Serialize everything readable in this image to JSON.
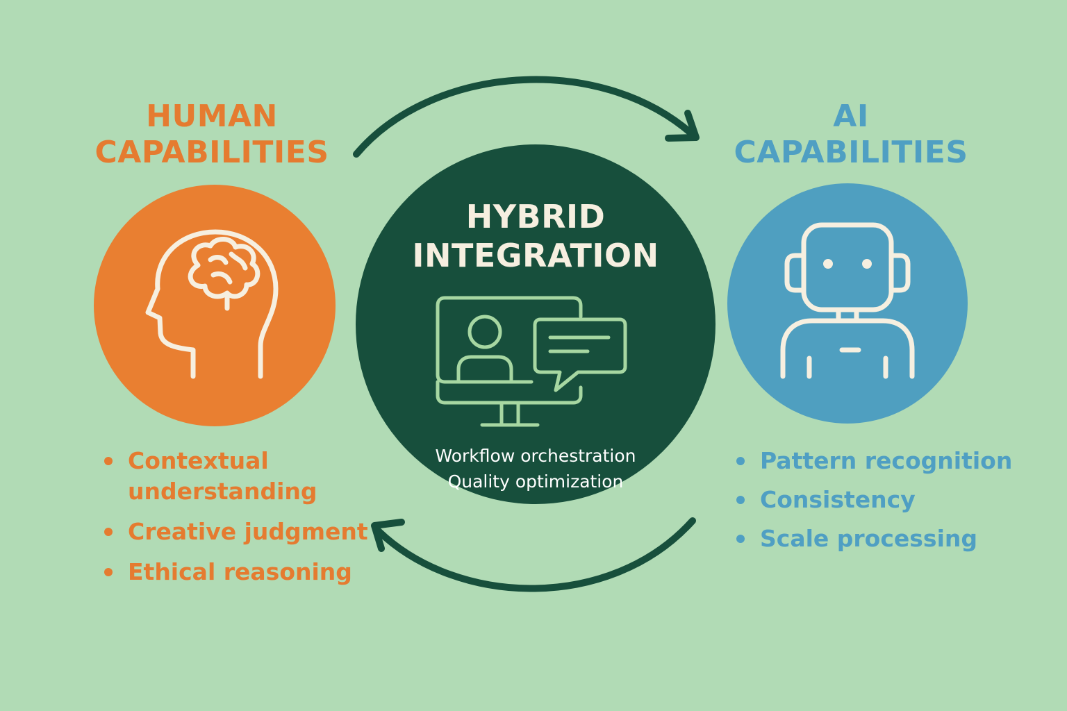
{
  "human": {
    "heading_line1": "HUMAN",
    "heading_line2": "CAPABILITIES",
    "icon": "head-with-brain-icon",
    "items": [
      "Contextual understanding",
      "Creative judgment",
      "Ethical reasoning"
    ]
  },
  "hub": {
    "title_line1": "HYBRID",
    "title_line2": "INTEGRATION",
    "icon": "monitor-with-person-and-chat-icon",
    "items": [
      "Workflow orchestration",
      "Quality optimization"
    ]
  },
  "ai": {
    "heading_line1": "AI",
    "heading_line2": "CAPABILITIES",
    "icon": "robot-icon",
    "items": [
      "Pattern recognition",
      "Consistency",
      "Scale processing"
    ]
  },
  "colors": {
    "background": "#b1dbb5",
    "human": "#e97f31",
    "ai": "#4f9fc0",
    "hub": "#174f3c",
    "icon_stroke": "#f6efe0",
    "hub_icon_stroke": "#a7d7a2"
  }
}
